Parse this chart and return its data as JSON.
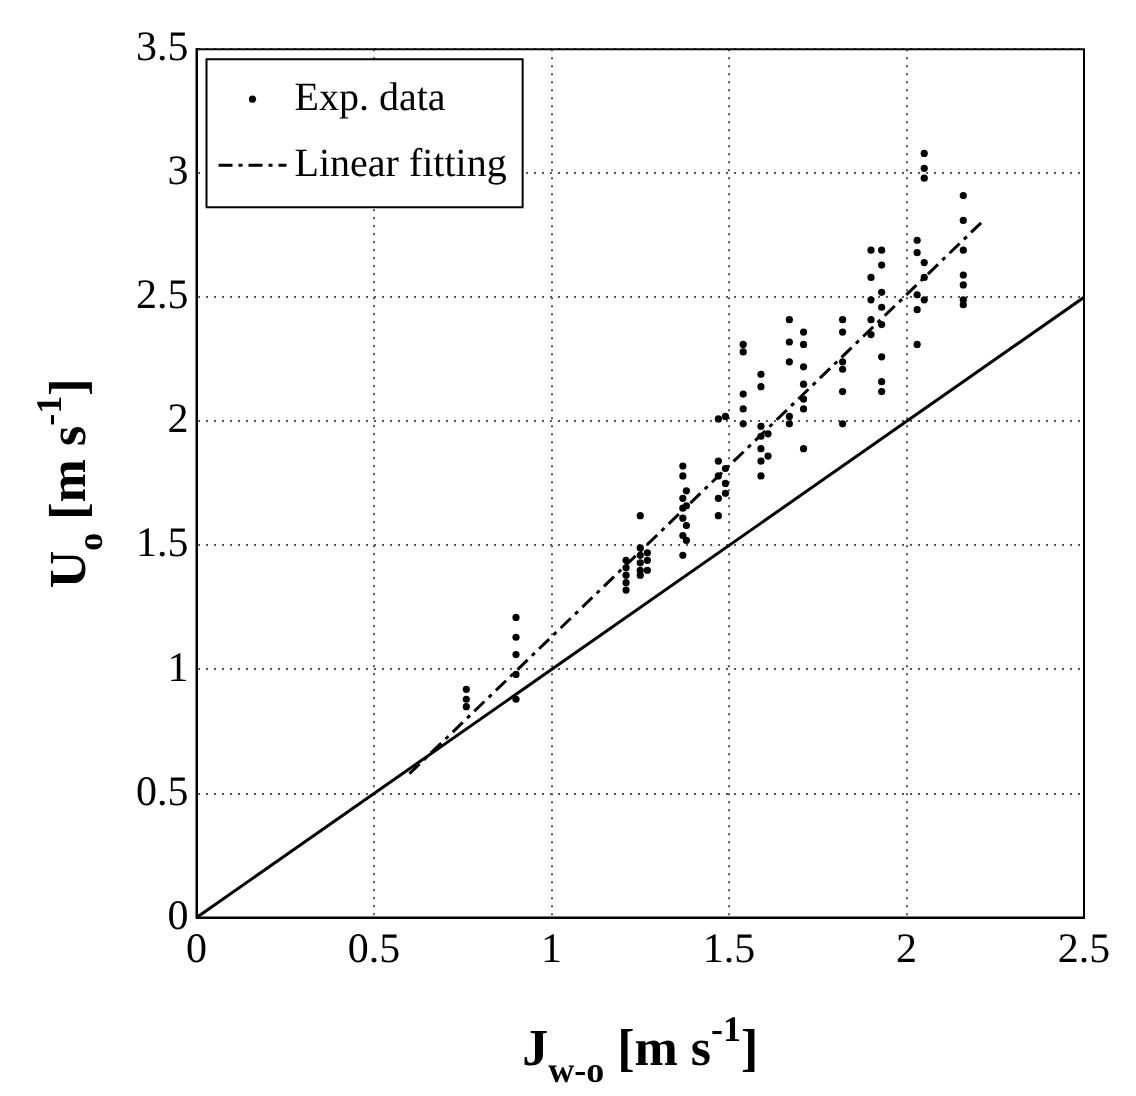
{
  "chart_data": {
    "type": "scatter",
    "xlabel": "J$_{w-o}$ [m s$^{-1}$]",
    "ylabel": "U$_{o}$ [m s$^{-1}$]",
    "xlim": [
      0,
      2.5
    ],
    "ylim": [
      0,
      3.5
    ],
    "xticks": [
      0,
      0.5,
      1,
      1.5,
      2,
      2.5
    ],
    "yticks": [
      0,
      0.5,
      1,
      1.5,
      2,
      2.5,
      3,
      3.5
    ],
    "grid": true,
    "legend": "top left",
    "marker": "circle",
    "series": [
      {
        "name": "Exp. data",
        "color": "#000000",
        "x": [
          0.76,
          0.76,
          0.76,
          0.9,
          0.9,
          0.9,
          0.9,
          0.9,
          1.21,
          1.21,
          1.21,
          1.21,
          1.21,
          1.25,
          1.25,
          1.25,
          1.25,
          1.25,
          1.25,
          1.27,
          1.27,
          1.27,
          1.37,
          1.37,
          1.37,
          1.37,
          1.37,
          1.37,
          1.37,
          1.38,
          1.38,
          1.38,
          1.38,
          1.47,
          1.47,
          1.47,
          1.47,
          1.47,
          1.49,
          1.49,
          1.49,
          1.49,
          1.54,
          1.54,
          1.54,
          1.54,
          1.54,
          1.59,
          1.59,
          1.59,
          1.59,
          1.59,
          1.59,
          1.59,
          1.61,
          1.61,
          1.67,
          1.67,
          1.67,
          1.67,
          1.67,
          1.71,
          1.71,
          1.71,
          1.71,
          1.71,
          1.71,
          1.71,
          1.82,
          1.82,
          1.82,
          1.82,
          1.82,
          1.82,
          1.9,
          1.9,
          1.9,
          1.9,
          1.9,
          1.93,
          1.93,
          1.93,
          1.93,
          1.93,
          1.93,
          1.93,
          1.93,
          2.03,
          2.03,
          2.03,
          2.03,
          2.03,
          2.05,
          2.05,
          2.05,
          2.05,
          2.05,
          2.05,
          2.16,
          2.16,
          2.16,
          2.16,
          2.16,
          2.16,
          2.16
        ],
        "values": [
          0.92,
          0.88,
          0.85,
          1.21,
          1.13,
          1.06,
          0.98,
          0.88,
          1.44,
          1.41,
          1.38,
          1.35,
          1.32,
          1.62,
          1.49,
          1.46,
          1.43,
          1.4,
          1.38,
          1.47,
          1.44,
          1.4,
          1.82,
          1.78,
          1.69,
          1.65,
          1.61,
          1.54,
          1.46,
          1.72,
          1.66,
          1.58,
          1.52,
          2.01,
          1.84,
          1.78,
          1.69,
          1.62,
          2.02,
          1.81,
          1.75,
          1.71,
          2.31,
          2.28,
          2.11,
          2.05,
          1.99,
          2.19,
          2.14,
          1.98,
          1.94,
          1.89,
          1.84,
          1.78,
          1.95,
          1.86,
          2.41,
          2.32,
          2.24,
          2.02,
          1.99,
          2.36,
          2.31,
          2.22,
          2.15,
          2.09,
          2.05,
          1.89,
          2.41,
          2.36,
          2.24,
          2.21,
          2.12,
          1.99,
          2.69,
          2.58,
          2.49,
          2.41,
          2.35,
          2.69,
          2.63,
          2.52,
          2.46,
          2.39,
          2.26,
          2.16,
          2.12,
          2.73,
          2.68,
          2.51,
          2.45,
          2.31,
          3.08,
          3.02,
          2.98,
          2.64,
          2.58,
          2.49,
          2.91,
          2.81,
          2.69,
          2.59,
          2.55,
          2.49,
          2.47
        ]
      },
      {
        "name": "Linear fitting",
        "type": "line",
        "color": "#000000",
        "line_style": "dashed",
        "marker": "none",
        "x": [
          0.6,
          2.21
        ],
        "values": [
          0.58,
          2.8
        ]
      },
      {
        "type": "line",
        "color": "#000000",
        "line_style": "solid",
        "marker": "none",
        "x": [
          0,
          2.5
        ],
        "values": [
          0,
          2.5
        ]
      }
    ]
  }
}
